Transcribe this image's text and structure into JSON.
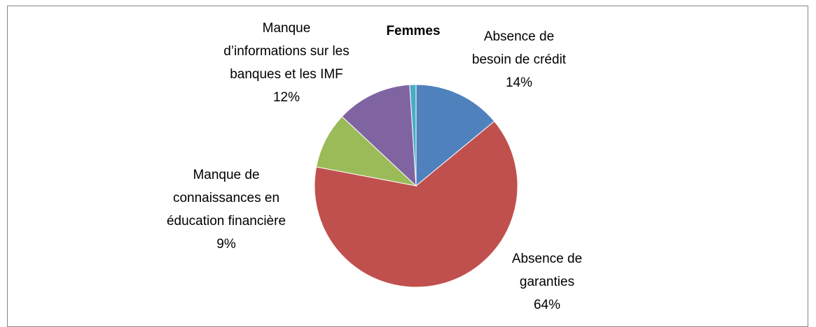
{
  "chart_data": {
    "type": "pie",
    "title": "Femmes",
    "categories": [
      "Absence de besoin de crédit",
      "Absence de garanties",
      "Manque de connaissances en éducation financière",
      "Manque d’informations sur les banques et les IMF",
      null
    ],
    "values": [
      14,
      64,
      9,
      12,
      1
    ],
    "value_labels": [
      "14%",
      "64%",
      "9%",
      "12%",
      null
    ],
    "colors": [
      "#4f81bd",
      "#c0504d",
      "#9bbb59",
      "#8064a2",
      "#4bacc6"
    ]
  }
}
